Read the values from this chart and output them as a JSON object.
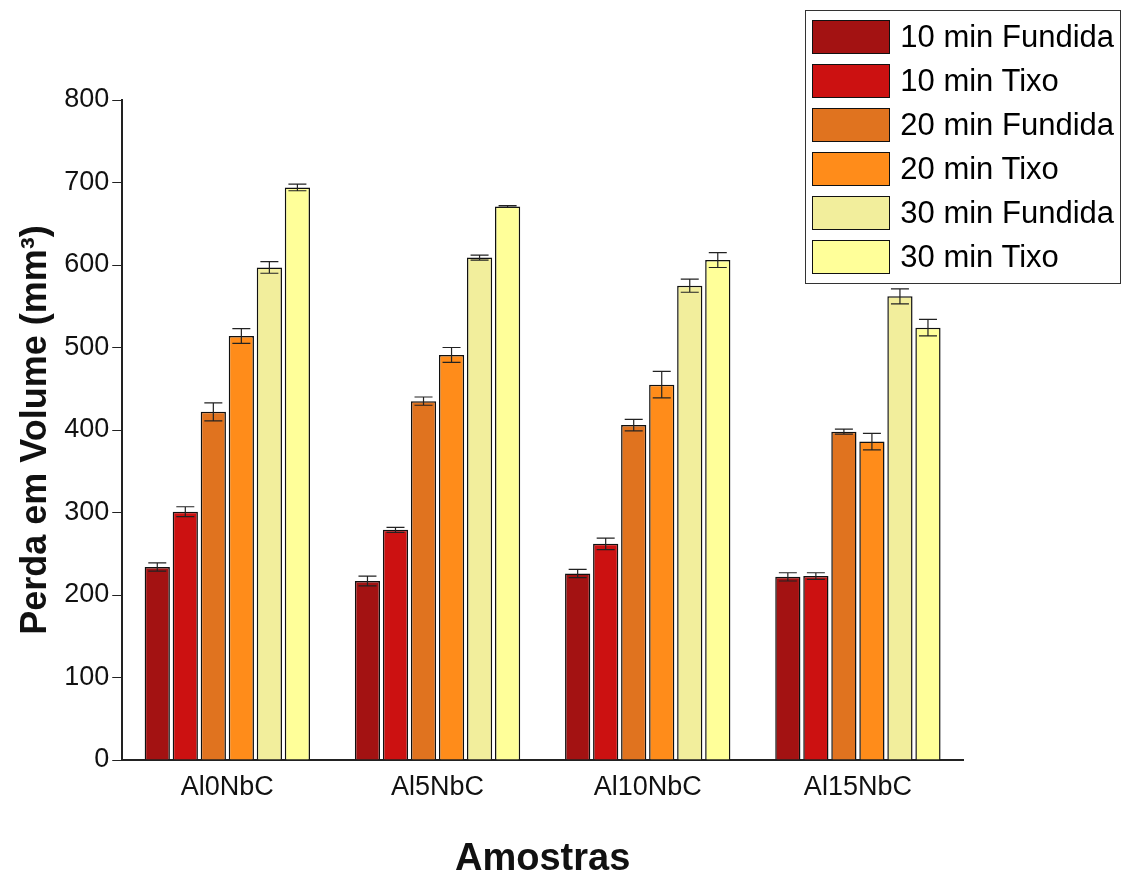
{
  "chart_data": {
    "type": "bar",
    "xlabel": "Amostras",
    "ylabel": "Perda em Volume (mm³)",
    "categories": [
      "Al0NbC",
      "Al5NbC",
      "Al10NbC",
      "Al15NbC"
    ],
    "series": [
      {
        "name": "10 min Fundida",
        "color": "#a31212",
        "values": [
          234,
          217,
          226,
          222
        ],
        "errors": [
          5,
          6,
          5,
          5
        ]
      },
      {
        "name": "10 min Tixo",
        "color": "#cc1111",
        "values": [
          301,
          279,
          262,
          223
        ],
        "errors": [
          6,
          3,
          7,
          4
        ]
      },
      {
        "name": "20 min Fundida",
        "color": "#e0731f",
        "values": [
          422,
          435,
          406,
          398
        ],
        "errors": [
          11,
          5,
          7,
          3
        ]
      },
      {
        "name": "20 min Tixo",
        "color": "#ff8c1a",
        "values": [
          514,
          491,
          455,
          386
        ],
        "errors": [
          9,
          9,
          16,
          10
        ]
      },
      {
        "name": "30 min Fundida",
        "color": "#f2ee9c",
        "values": [
          597,
          609,
          575,
          562
        ],
        "errors": [
          7,
          3,
          8,
          9
        ]
      },
      {
        "name": "30 min Tixo",
        "color": "#ffff99",
        "values": [
          694,
          671,
          606,
          524
        ],
        "errors": [
          4,
          1,
          9,
          10
        ]
      }
    ],
    "ylim": [
      0,
      800
    ],
    "yticks": [
      0,
      100,
      200,
      300,
      400,
      500,
      600,
      700,
      800
    ],
    "grid": false,
    "legend": "top right"
  }
}
